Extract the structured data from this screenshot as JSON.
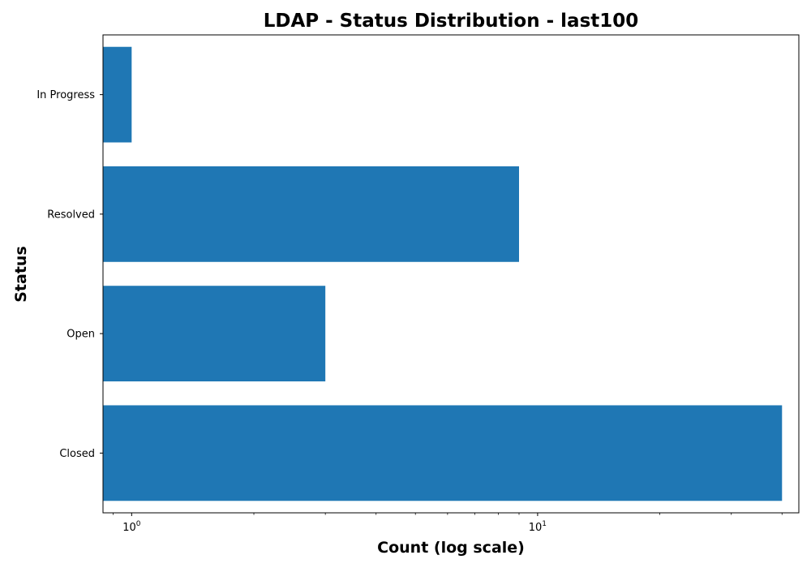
{
  "chart_data": {
    "type": "bar",
    "orientation": "horizontal",
    "title": "LDAP - Status Distribution - last100",
    "xlabel": "Count (log scale)",
    "ylabel": "Status",
    "x_scale": "log",
    "xlim": [
      0.85,
      44
    ],
    "categories": [
      "Closed",
      "Open",
      "Resolved",
      "In Progress"
    ],
    "values": [
      40,
      3,
      9,
      1
    ],
    "bar_color": "#1f77b4",
    "grid": false,
    "x_major_ticks": [
      {
        "base": "10",
        "exp": "0",
        "value": 1
      },
      {
        "base": "10",
        "exp": "1",
        "value": 10
      }
    ]
  }
}
